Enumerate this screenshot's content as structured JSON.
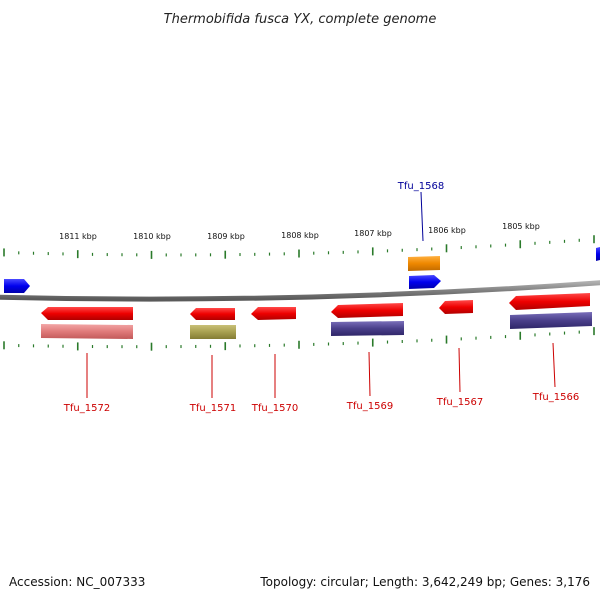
{
  "title": "Thermobifida fusca YX, complete genome",
  "footer": {
    "accession": "Accession: NC_007333",
    "stats": "Topology: circular; Length: 3,642,249 bp; Genes: 3,176"
  },
  "ticks": [
    {
      "label": "1811 kbp"
    },
    {
      "label": "1810 kbp"
    },
    {
      "label": "1809 kbp"
    },
    {
      "label": "1808 kbp"
    },
    {
      "label": "1807 kbp"
    },
    {
      "label": "1806 kbp"
    },
    {
      "label": "1805 kbp"
    }
  ],
  "genes": [
    {
      "label": "Tfu_1572",
      "color": "#cc0000"
    },
    {
      "label": "Tfu_1571",
      "color": "#cc0000"
    },
    {
      "label": "Tfu_1570",
      "color": "#cc0000"
    },
    {
      "label": "Tfu_1569",
      "color": "#cc0000"
    },
    {
      "label": "Tfu_1568",
      "color": "#000099"
    },
    {
      "label": "Tfu_1567",
      "color": "#cc0000"
    },
    {
      "label": "Tfu_1566",
      "color": "#cc0000"
    }
  ],
  "colors": {
    "backbone": "#808080",
    "tick": "#2a7a2a",
    "cds_reverse": "#ee0000",
    "cds_forward": "#0000ee",
    "feature_pink": "#e07a7a",
    "feature_olive": "#a8a050",
    "feature_purple": "#4a3f8a",
    "feature_orange": "#ee8800"
  }
}
